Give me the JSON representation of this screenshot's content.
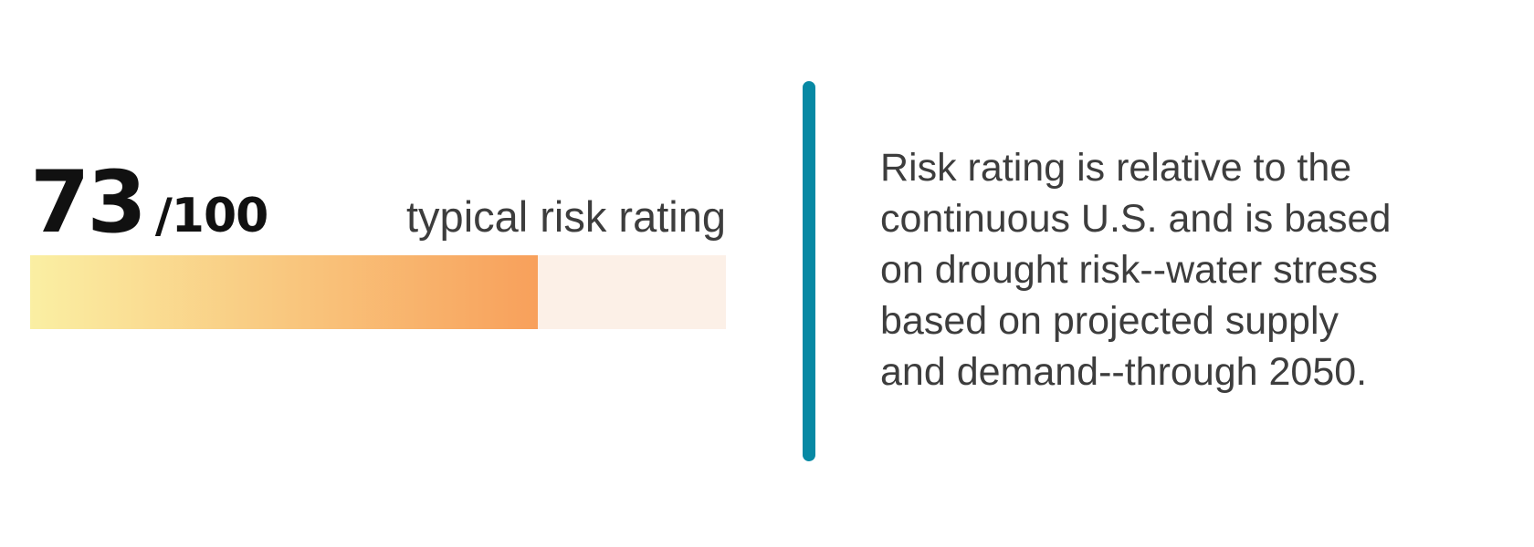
{
  "score": {
    "value": "73",
    "max_label": "/100",
    "label": "typical risk rating",
    "percent": 73,
    "max": 100
  },
  "description": {
    "lines": [
      "Risk rating is relative to the",
      "continuous U.S. and is based",
      "on drought risk--water stress",
      "based on projected supply",
      "and demand--through 2050."
    ]
  },
  "colors": {
    "bar-start": "#FAEFA3",
    "bar-end": "#F8A05B",
    "bar-track": "#FCF0E7",
    "divider": "#0789A4",
    "score": "#111111",
    "text": "#3D3D3D"
  }
}
